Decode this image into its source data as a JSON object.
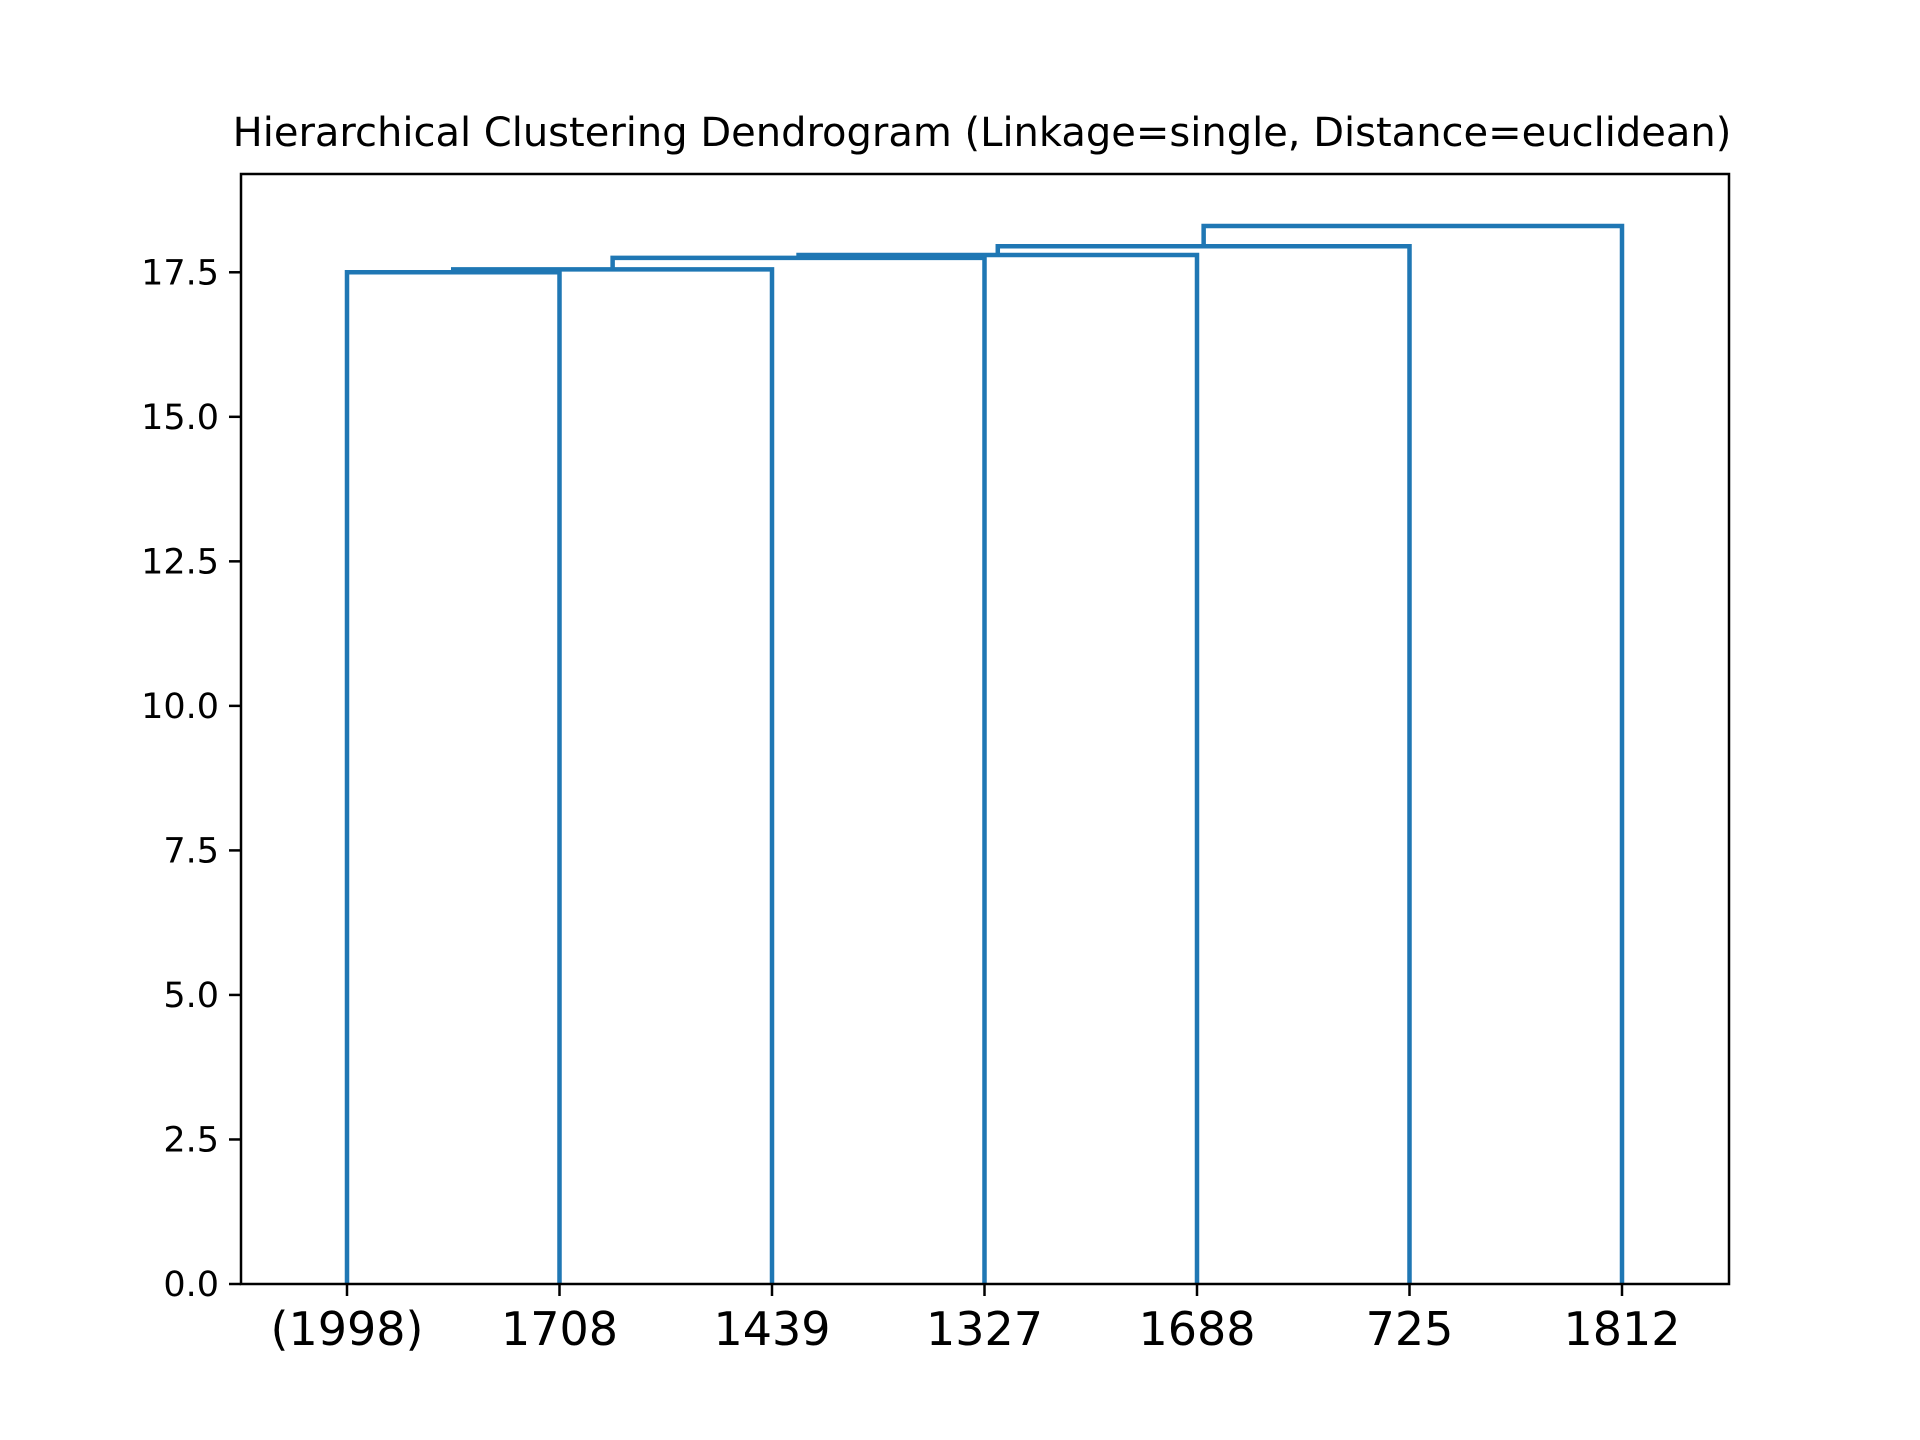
{
  "chart_data": {
    "type": "dendrogram",
    "title": "Hierarchical Clustering Dendrogram (Linkage=single, Distance=euclidean)",
    "xlabel": "",
    "ylabel": "",
    "ylim": [
      0,
      19.2
    ],
    "yticks": [
      0.0,
      2.5,
      5.0,
      7.5,
      10.0,
      12.5,
      15.0,
      17.5
    ],
    "ytick_labels": [
      "0.0",
      "2.5",
      "5.0",
      "7.5",
      "10.0",
      "12.5",
      "15.0",
      "17.5"
    ],
    "leaves": [
      "(1998)",
      "1708",
      "1439",
      "1327",
      "1688",
      "725",
      "1812"
    ],
    "link_color": "#1f77b4",
    "merges": [
      {
        "left": 0,
        "right": 1,
        "height": 17.5
      },
      {
        "left": 0.5,
        "right": 2,
        "height": 17.55
      },
      {
        "left": 1.25,
        "right": 3,
        "height": 17.75
      },
      {
        "left": 2.125,
        "right": 4,
        "height": 17.8
      },
      {
        "left": 3.0625,
        "right": 5,
        "height": 17.95
      },
      {
        "left": 4.03125,
        "right": 6,
        "height": 18.3
      }
    ]
  }
}
